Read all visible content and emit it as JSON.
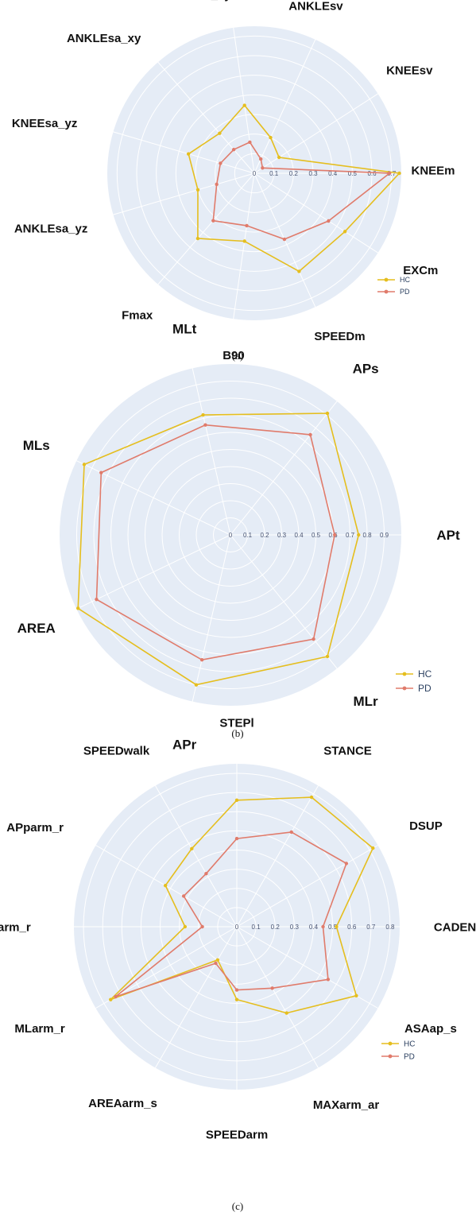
{
  "chart_data": [
    {
      "type": "radar",
      "panel_label": "(a)",
      "axes": [
        "KNEEm",
        "EXCm",
        "SPEEDm",
        "B90",
        "Fmax",
        "ANKLEsa_yz",
        "KNEEsa_yz",
        "ANKLEsa_xy",
        "ANKLEsa_xy",
        "ANKLEsv",
        "KNEEsv"
      ],
      "tick_values": [
        0,
        0.1,
        0.2,
        0.3,
        0.4,
        0.5,
        0.6,
        0.7
      ],
      "tick_labels": [
        "0",
        "0.1",
        "0.2",
        "0.3",
        "0.4",
        "0.5",
        "0.6",
        "0.7"
      ],
      "rmax": 0.75,
      "series": [
        {
          "name": "HC",
          "color": "#e5be1e",
          "values": [
            0.74,
            0.55,
            0.55,
            0.35,
            0.44,
            0.3,
            0.35,
            0.27,
            0.35,
            0.2,
            0.15
          ]
        },
        {
          "name": "PD",
          "color": "#e07b6b",
          "values": [
            0.69,
            0.45,
            0.37,
            0.27,
            0.32,
            0.2,
            0.18,
            0.16,
            0.16,
            0.08,
            0.05
          ]
        }
      ],
      "legend_position": "bottom-right"
    },
    {
      "type": "radar",
      "panel_label": "(b)",
      "axes": [
        "APt",
        "MLr",
        "APr",
        "AREA",
        "MLs",
        "MLt",
        "APs"
      ],
      "tick_values": [
        0,
        0.1,
        0.2,
        0.3,
        0.4,
        0.5,
        0.6,
        0.7,
        0.8,
        0.9
      ],
      "tick_labels": [
        "0",
        "0.1",
        "0.2",
        "0.3",
        "0.4",
        "0.5",
        "0.6",
        "0.7",
        "0.8",
        "0.9"
      ],
      "rmax": 1.0,
      "series": [
        {
          "name": "HC",
          "color": "#e5be1e",
          "values": [
            0.75,
            0.91,
            0.9,
            0.99,
            0.95,
            0.72,
            0.91
          ]
        },
        {
          "name": "PD",
          "color": "#e07b6b",
          "values": [
            0.61,
            0.78,
            0.75,
            0.87,
            0.84,
            0.66,
            0.75
          ]
        }
      ],
      "legend_position": "bottom-right"
    },
    {
      "type": "radar",
      "panel_label": "(c)",
      "axes": [
        "CADENCE",
        "ASAap_s",
        "MAXarm_ar",
        "SPEEDarm",
        "AREAarm_s",
        "MLarm_r",
        "UDarm_r",
        "APparm_r",
        "SPEEDwalk",
        "STEPl",
        "STANCE",
        "DSUP"
      ],
      "tick_values": [
        0,
        0.1,
        0.2,
        0.3,
        0.4,
        0.5,
        0.6,
        0.7,
        0.8
      ],
      "tick_labels": [
        "0",
        "0.1",
        "0.2",
        "0.3",
        "0.4",
        "0.5",
        "0.6",
        "0.7",
        "0.8"
      ],
      "rmax": 0.85,
      "series": [
        {
          "name": "HC",
          "color": "#e5be1e",
          "values": [
            0.52,
            0.72,
            0.52,
            0.38,
            0.2,
            0.76,
            0.27,
            0.43,
            0.47,
            0.66,
            0.78,
            0.82
          ]
        },
        {
          "name": "PD",
          "color": "#e07b6b",
          "values": [
            0.45,
            0.55,
            0.37,
            0.33,
            0.22,
            0.73,
            0.18,
            0.32,
            0.32,
            0.46,
            0.57,
            0.66
          ]
        }
      ],
      "legend_position": "bottom-right"
    }
  ],
  "legend": {
    "hc_label": "HC",
    "pd_label": "PD"
  }
}
